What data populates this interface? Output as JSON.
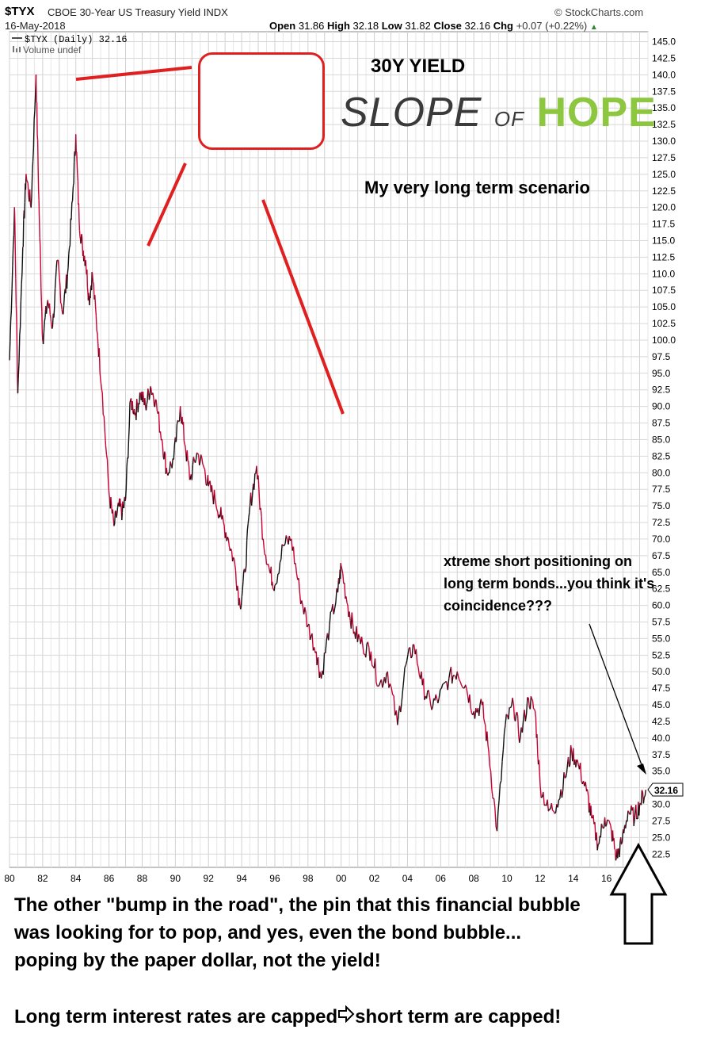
{
  "header": {
    "ticker": "$TYX",
    "subtitle": "CBOE 30-Year US Treasury Yield INDX",
    "date": "16-May-2018",
    "open_label": "Open",
    "open": "31.86",
    "high_label": "High",
    "high": "32.18",
    "low_label": "Low",
    "low": "31.82",
    "close_label": "Close",
    "close": "32.16",
    "chg_label": "Chg",
    "chg": "+0.07 (+0.22%)",
    "source": "© StockCharts.com"
  },
  "legend": {
    "series": "$TYX (Daily) 32.16",
    "volume": "Volume undef"
  },
  "price_label": "32.16",
  "logo": {
    "word1": "SLOPE",
    "word2": "OF",
    "word3": "HOPE"
  },
  "annotations": {
    "title": "30Y YIELD",
    "scenario": "My very long term scenario",
    "short_positioning": "xtreme short positioning on long term bonds...you think it's coincidence???",
    "bump": "The other \"bump in the road\", the pin that this financial bubble was looking for to pop, and yes, even the bond bubble... poping by the paper dollar, not the yield!",
    "capped_left": "Long term interest rates are capped",
    "capped_right": "short term are capped!"
  },
  "colors": {
    "line_up": "#cc0033",
    "line_down": "#111111",
    "red_annotation": "#e02020",
    "grid": "#d8d8d8",
    "logo_green": "#8dc63f"
  },
  "chart_data": {
    "type": "line",
    "title": "$TYX CBOE 30-Year US Treasury Yield INDX",
    "xlabel": "",
    "ylabel": "",
    "x_ticks": [
      "80",
      "82",
      "84",
      "86",
      "88",
      "90",
      "92",
      "94",
      "96",
      "98",
      "00",
      "02",
      "04",
      "06",
      "08",
      "10",
      "12",
      "14",
      "16",
      "18"
    ],
    "y_ticks": [
      "22.5",
      "25.0",
      "27.5",
      "30.0",
      "32.5",
      "35.0",
      "37.5",
      "40.0",
      "42.5",
      "45.0",
      "47.5",
      "50.0",
      "52.5",
      "55.0",
      "57.5",
      "60.0",
      "62.5",
      "65.0",
      "67.5",
      "70.0",
      "72.5",
      "75.0",
      "77.5",
      "80.0",
      "82.5",
      "85.0",
      "87.5",
      "90.0",
      "92.5",
      "95.0",
      "97.5",
      "100.0",
      "102.5",
      "105.0",
      "107.5",
      "110.0",
      "112.5",
      "115.0",
      "117.5",
      "120.0",
      "122.5",
      "125.0",
      "127.5",
      "130.0",
      "132.5",
      "135.0",
      "137.5",
      "140.0",
      "142.5",
      "145.0"
    ],
    "xlim": [
      1980.0,
      2018.5
    ],
    "ylim": [
      20.5,
      146.5
    ],
    "grid": true,
    "legend_position": "top-left",
    "series": [
      {
        "name": "$TYX (Daily) 32.16",
        "x": [
          1980.0,
          1980.3,
          1980.5,
          1980.8,
          1981.0,
          1981.3,
          1981.6,
          1981.8,
          1982.0,
          1982.3,
          1982.6,
          1982.9,
          1983.2,
          1983.5,
          1983.8,
          1984.0,
          1984.2,
          1984.4,
          1984.6,
          1984.8,
          1985.0,
          1985.3,
          1985.6,
          1986.0,
          1986.3,
          1986.6,
          1986.8,
          1987.0,
          1987.3,
          1987.6,
          1987.9,
          1988.2,
          1988.5,
          1988.8,
          1989.2,
          1989.5,
          1989.9,
          1990.3,
          1990.6,
          1990.9,
          1991.3,
          1991.7,
          1992.0,
          1992.4,
          1992.8,
          1993.2,
          1993.6,
          1993.9,
          1994.2,
          1994.5,
          1994.9,
          1995.3,
          1995.7,
          1996.0,
          1996.5,
          1997.0,
          1997.5,
          1998.0,
          1998.5,
          1998.8,
          1999.3,
          1999.8,
          2000.0,
          2000.4,
          2000.8,
          2001.3,
          2001.8,
          2002.3,
          2002.8,
          2003.4,
          2003.9,
          2004.4,
          2004.9,
          2005.4,
          2005.9,
          2006.5,
          2007.0,
          2007.5,
          2008.0,
          2008.5,
          2008.9,
          2009.4,
          2009.9,
          2010.4,
          2010.8,
          2011.3,
          2011.7,
          2012.0,
          2012.5,
          2013.0,
          2013.5,
          2013.9,
          2014.3,
          2014.8,
          2015.1,
          2015.5,
          2015.9,
          2016.3,
          2016.6,
          2016.9,
          2017.3,
          2017.7,
          2018.0,
          2018.37
        ],
        "values": [
          97.0,
          120.0,
          92.0,
          114.0,
          125.0,
          120.0,
          140.0,
          118.0,
          100.0,
          106.0,
          102.0,
          112.0,
          104.0,
          110.0,
          121.0,
          131.0,
          118.0,
          114.0,
          112.0,
          106.0,
          110.0,
          101.0,
          92.0,
          77.0,
          72.0,
          75.0,
          74.0,
          76.0,
          91.0,
          89.0,
          92.0,
          90.0,
          93.0,
          91.0,
          85.0,
          80.0,
          82.0,
          90.0,
          84.0,
          79.0,
          83.0,
          81.0,
          78.0,
          76.0,
          73.0,
          70.0,
          66.0,
          60.0,
          65.0,
          75.0,
          81.0,
          70.0,
          65.0,
          63.0,
          69.0,
          70.0,
          62.0,
          57.0,
          53.0,
          49.0,
          57.0,
          62.0,
          66.0,
          60.0,
          56.0,
          54.0,
          53.0,
          48.0,
          50.0,
          42.0,
          51.0,
          54.0,
          48.0,
          45.0,
          46.0,
          49.0,
          50.0,
          48.0,
          44.0,
          45.0,
          38.0,
          26.0,
          42.0,
          45.0,
          40.0,
          46.0,
          44.0,
          33.0,
          29.0,
          30.0,
          34.0,
          38.0,
          36.0,
          32.0,
          28.0,
          24.0,
          28.0,
          26.0,
          22.0,
          24.0,
          29.0,
          28.0,
          30.0,
          32.16
        ]
      }
    ]
  }
}
